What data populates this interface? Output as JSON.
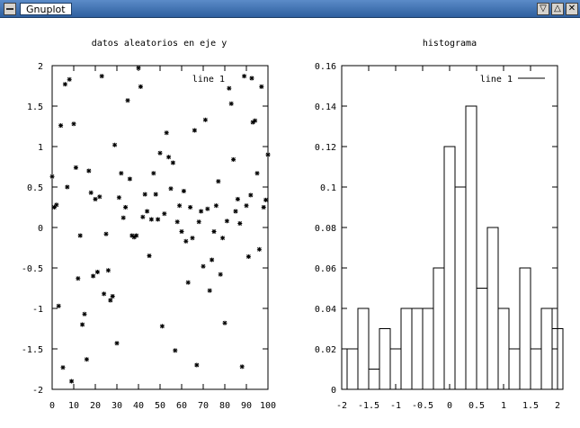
{
  "window": {
    "title": "Gnuplot",
    "buttons": {
      "minimize": "▽",
      "maximize": "△",
      "close": "✕"
    }
  },
  "chart_data": [
    {
      "type": "scatter",
      "title": "datos aleatorios en eje y",
      "legend": {
        "label": "line 1",
        "position": "top-right",
        "marker": "*"
      },
      "xlim": [
        0,
        100
      ],
      "ylim": [
        -2,
        2
      ],
      "xticks": [
        "0",
        "10",
        "20",
        "30",
        "40",
        "50",
        "60",
        "70",
        "80",
        "90",
        "100"
      ],
      "yticks": [
        "2",
        "1.5",
        "1",
        "0.5",
        "0",
        "-0.5",
        "-1",
        "-1.5",
        "-2"
      ],
      "grid": false,
      "points": [
        [
          0,
          0.63
        ],
        [
          1,
          0.25
        ],
        [
          2,
          0.28
        ],
        [
          3,
          -0.97
        ],
        [
          4,
          1.26
        ],
        [
          5,
          -1.73
        ],
        [
          6,
          1.77
        ],
        [
          7,
          0.5
        ],
        [
          8,
          1.83
        ],
        [
          9,
          -1.9
        ],
        [
          10,
          1.28
        ],
        [
          11,
          0.74
        ],
        [
          12,
          -0.63
        ],
        [
          13,
          -0.1
        ],
        [
          14,
          -1.2
        ],
        [
          15,
          -1.07
        ],
        [
          16,
          -1.63
        ],
        [
          17,
          0.7
        ],
        [
          18,
          0.43
        ],
        [
          19,
          -0.6
        ],
        [
          20,
          0.35
        ],
        [
          21,
          -0.55
        ],
        [
          22,
          0.38
        ],
        [
          23,
          1.87
        ],
        [
          24,
          -0.82
        ],
        [
          25,
          -0.08
        ],
        [
          26,
          -0.53
        ],
        [
          27,
          -0.9
        ],
        [
          28,
          -0.85
        ],
        [
          29,
          1.02
        ],
        [
          30,
          -1.43
        ],
        [
          31,
          0.37
        ],
        [
          32,
          0.67
        ],
        [
          33,
          0.12
        ],
        [
          34,
          0.25
        ],
        [
          35,
          1.57
        ],
        [
          36,
          0.6
        ],
        [
          37,
          -0.1
        ],
        [
          38,
          -0.12
        ],
        [
          39,
          -0.1
        ],
        [
          40,
          1.97
        ],
        [
          41,
          1.74
        ],
        [
          42,
          0.13
        ],
        [
          43,
          0.41
        ],
        [
          44,
          0.2
        ],
        [
          45,
          -0.35
        ],
        [
          46,
          0.1
        ],
        [
          47,
          0.67
        ],
        [
          48,
          0.41
        ],
        [
          49,
          0.1
        ],
        [
          50,
          0.92
        ],
        [
          51,
          -1.22
        ],
        [
          52,
          0.17
        ],
        [
          53,
          1.17
        ],
        [
          54,
          0.87
        ],
        [
          55,
          0.48
        ],
        [
          56,
          0.8
        ],
        [
          57,
          -1.52
        ],
        [
          58,
          0.07
        ],
        [
          59,
          0.27
        ],
        [
          60,
          -0.05
        ],
        [
          61,
          0.45
        ],
        [
          62,
          -0.17
        ],
        [
          63,
          -0.68
        ],
        [
          64,
          0.25
        ],
        [
          65,
          -0.13
        ],
        [
          66,
          1.2
        ],
        [
          67,
          -1.7
        ],
        [
          68,
          0.07
        ],
        [
          69,
          0.2
        ],
        [
          70,
          -0.48
        ],
        [
          71,
          1.33
        ],
        [
          72,
          0.23
        ],
        [
          73,
          -0.78
        ],
        [
          74,
          -0.4
        ],
        [
          75,
          -0.05
        ],
        [
          76,
          0.27
        ],
        [
          77,
          0.57
        ],
        [
          78,
          -0.58
        ],
        [
          79,
          -0.13
        ],
        [
          80,
          -1.18
        ],
        [
          81,
          0.08
        ],
        [
          82,
          1.72
        ],
        [
          83,
          1.53
        ],
        [
          84,
          0.84
        ],
        [
          85,
          0.2
        ],
        [
          86,
          0.35
        ],
        [
          87,
          0.05
        ],
        [
          88,
          -1.72
        ],
        [
          89,
          1.87
        ],
        [
          90,
          0.27
        ],
        [
          91,
          -0.36
        ],
        [
          92,
          0.4
        ],
        [
          93,
          1.3
        ],
        [
          94,
          1.32
        ],
        [
          95,
          0.67
        ],
        [
          96,
          -0.27
        ],
        [
          97,
          1.74
        ],
        [
          98,
          0.25
        ],
        [
          99,
          0.34
        ],
        [
          100,
          0.9
        ]
      ]
    },
    {
      "type": "bar",
      "title": "histograma",
      "legend": {
        "label": "line 1",
        "position": "top-right",
        "marker": "line"
      },
      "xlim": [
        -2,
        2
      ],
      "ylim": [
        0,
        0.16
      ],
      "xticks": [
        "-2",
        "-1.5",
        "-1",
        "-0.5",
        "0",
        "0.5",
        "1",
        "1.5",
        "2"
      ],
      "yticks": [
        "0.16",
        "0.14",
        "0.12",
        "0.1",
        "0.08",
        "0.06",
        "0.04",
        "0.02",
        "0"
      ],
      "grid": false,
      "bin_width": 0.2,
      "bins": [
        {
          "x": -1.8,
          "value": 0.02
        },
        {
          "x": -1.6,
          "value": 0.04
        },
        {
          "x": -1.4,
          "value": 0.01
        },
        {
          "x": -1.2,
          "value": 0.03
        },
        {
          "x": -1.0,
          "value": 0.02
        },
        {
          "x": -0.8,
          "value": 0.04
        },
        {
          "x": -0.6,
          "value": 0.04
        },
        {
          "x": -0.4,
          "value": 0.04
        },
        {
          "x": -0.2,
          "value": 0.06
        },
        {
          "x": 0.0,
          "value": 0.12
        },
        {
          "x": 0.2,
          "value": 0.1
        },
        {
          "x": 0.4,
          "value": 0.14
        },
        {
          "x": 0.6,
          "value": 0.05
        },
        {
          "x": 0.8,
          "value": 0.08
        },
        {
          "x": 1.0,
          "value": 0.04
        },
        {
          "x": 1.2,
          "value": 0.02
        },
        {
          "x": 1.4,
          "value": 0.06
        },
        {
          "x": 1.6,
          "value": 0.02
        },
        {
          "x": 1.8,
          "value": 0.04
        },
        {
          "x": 2.0,
          "value": 0.03
        }
      ]
    }
  ]
}
